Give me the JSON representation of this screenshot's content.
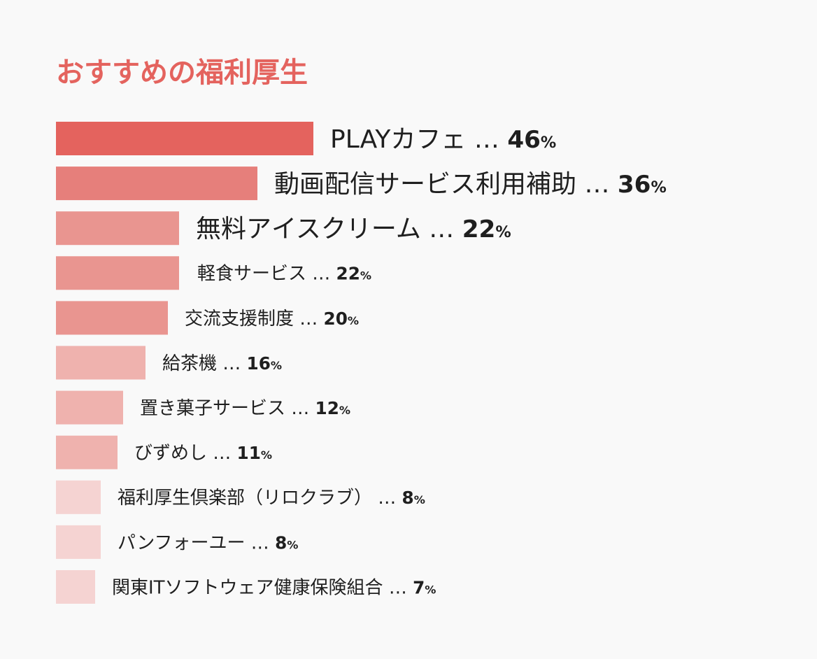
{
  "chart_data": {
    "type": "bar",
    "title": "おすすめの福利厚生",
    "xlabel": "",
    "ylabel": "",
    "xlim": [
      0,
      100
    ],
    "unit": "%",
    "separator": "…",
    "categories": [
      "PLAYカフェ",
      "動画配信サービス利用補助",
      "無料アイスクリーム",
      "軽食サービス",
      "交流支援制度",
      "給茶機",
      "置き菓子サービス",
      "びずめし",
      "福利厚生倶楽部（リロクラブ）",
      "パンフォーユー",
      "関東ITソフトウェア健康保険組合"
    ],
    "values": [
      46,
      36,
      22,
      22,
      20,
      16,
      12,
      11,
      8,
      8,
      7
    ],
    "colors": [
      "#e4635e",
      "#e67f7b",
      "#e99590",
      "#e99590",
      "#e99590",
      "#efb2ae",
      "#efb2ae",
      "#efb2ae",
      "#f5d3d2",
      "#f5d3d2",
      "#f5d3d2"
    ],
    "title_color": "#e4635e"
  }
}
